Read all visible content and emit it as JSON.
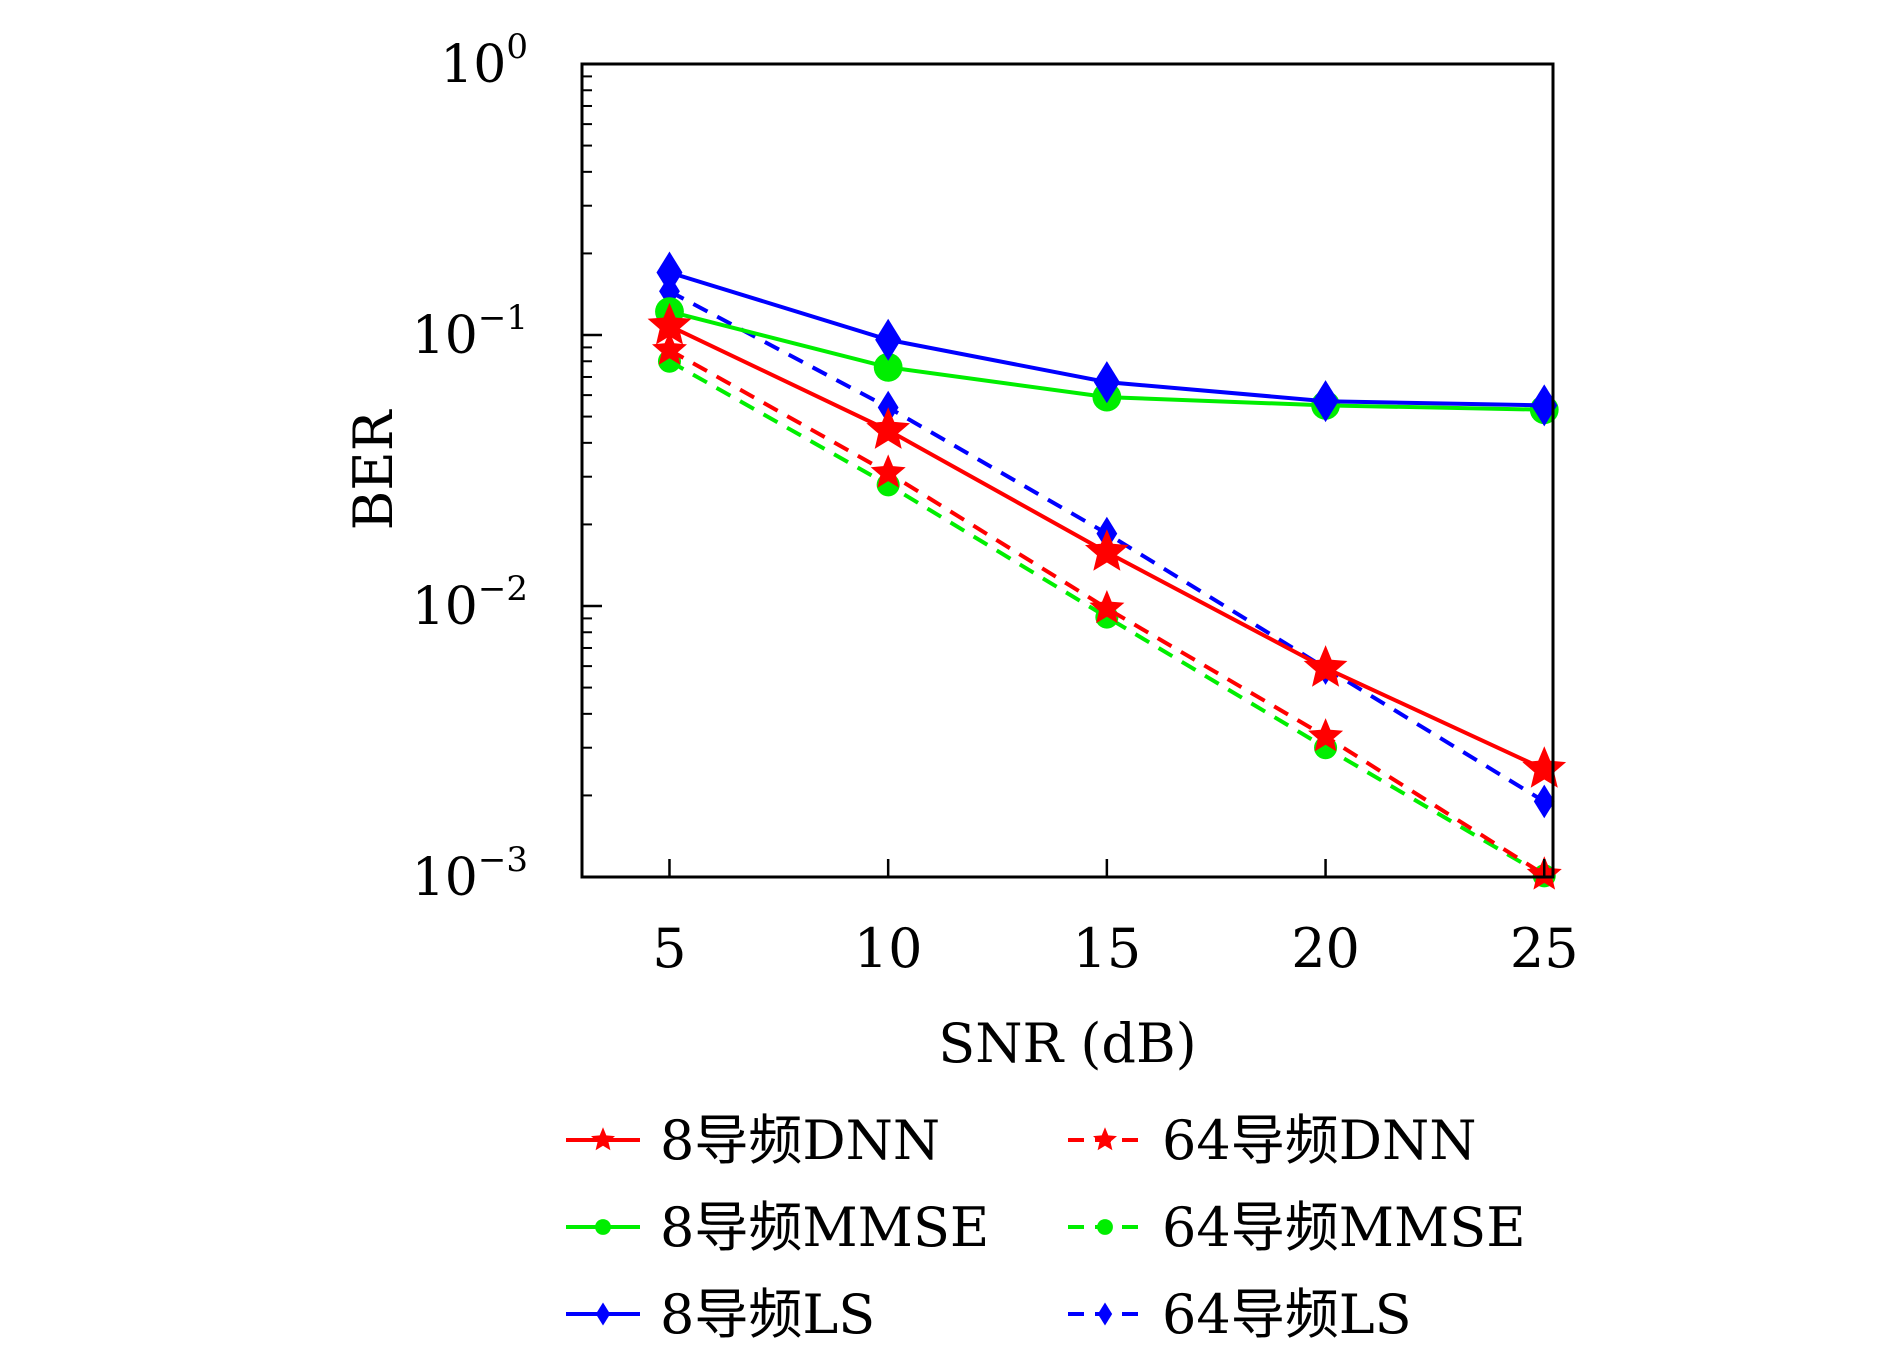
{
  "chart_data": {
    "type": "line",
    "xlabel": "SNR (dB)",
    "ylabel": "BER",
    "xlim": [
      3,
      25.2
    ],
    "ylim": [
      0.001,
      1
    ],
    "yscale": "log",
    "x_ticks": [
      5,
      10,
      15,
      20,
      25
    ],
    "x_tick_labels": [
      "5",
      "10",
      "15",
      "20",
      "25"
    ],
    "y_ticks": [
      {
        "value": 1,
        "base": "10",
        "exp": "0"
      },
      {
        "value": 0.1,
        "base": "10",
        "exp": "−1"
      },
      {
        "value": 0.01,
        "base": "10",
        "exp": "−2"
      },
      {
        "value": 0.001,
        "base": "10",
        "exp": "−3"
      }
    ],
    "grid": false,
    "legend_position": "bottom",
    "x": [
      5,
      10,
      15,
      20,
      25
    ],
    "series": [
      {
        "name": "8导频DNN",
        "color": "#ff0000",
        "line": "solid",
        "marker": "star",
        "values": [
          0.108,
          0.0445,
          0.0158,
          0.0059,
          0.0025
        ]
      },
      {
        "name": "64导频DNN",
        "color": "#ff0000",
        "line": "dashed",
        "marker": "star",
        "values": [
          0.088,
          0.031,
          0.0098,
          0.0033,
          0.00102
        ]
      },
      {
        "name": "8导频MMSE",
        "color": "#00ee00",
        "line": "solid",
        "marker": "circle",
        "values": [
          0.122,
          0.076,
          0.059,
          0.055,
          0.053
        ]
      },
      {
        "name": "64导频MMSE",
        "color": "#00ee00",
        "line": "dashed",
        "marker": "circle",
        "values": [
          0.08,
          0.028,
          0.0091,
          0.003,
          0.00101
        ]
      },
      {
        "name": "8导频LS",
        "color": "#0000ff",
        "line": "solid",
        "marker": "diamond",
        "values": [
          0.17,
          0.096,
          0.067,
          0.057,
          0.055
        ]
      },
      {
        "name": "64导频LS",
        "color": "#0000ff",
        "line": "dashed",
        "marker": "diamond",
        "values": [
          0.145,
          0.054,
          0.0185,
          0.0059,
          0.0019
        ]
      }
    ]
  }
}
